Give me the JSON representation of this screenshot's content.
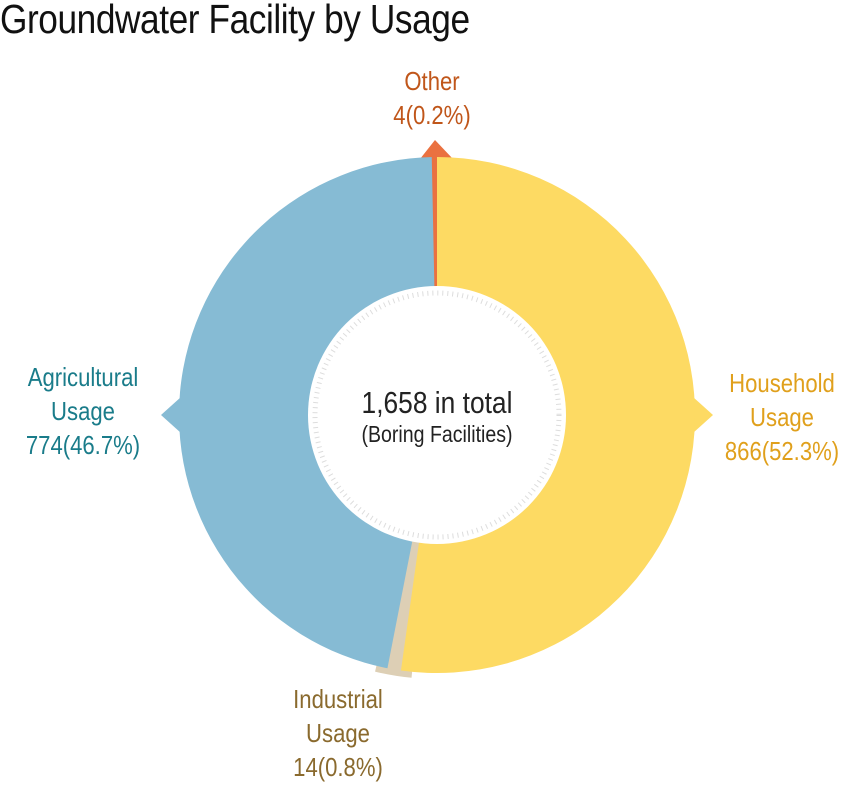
{
  "chart_data": {
    "type": "pie",
    "donut": true,
    "title": "Groundwater Facility by Usage",
    "center_text": {
      "total": "1,658 in total",
      "subtitle": "(Boring Facilities)"
    },
    "slices": [
      {
        "label": "Household Usage",
        "line1": "Household",
        "line2": "Usage",
        "value": 866,
        "percent": 52.3,
        "value_text": "866(52.3%)",
        "color": "#FDDA63",
        "label_color": "#E0A01C"
      },
      {
        "label": "Industrial Usage",
        "line1": "Industrial",
        "line2": "Usage",
        "value": 14,
        "percent": 0.8,
        "value_text": "14(0.8%)",
        "color": "#DDCFB5",
        "label_color": "#8A6A2E"
      },
      {
        "label": "Agricultural Usage",
        "line1": "Agricultural",
        "line2": "Usage",
        "value": 774,
        "percent": 46.7,
        "value_text": "774(46.7%)",
        "color": "#86BBD4",
        "label_color": "#1A7C8A"
      },
      {
        "label": "Other",
        "line1": "Other",
        "line2": "",
        "value": 4,
        "percent": 0.2,
        "value_text": "4(0.2%)",
        "color": "#EA7140",
        "label_color": "#C0561A"
      }
    ]
  }
}
